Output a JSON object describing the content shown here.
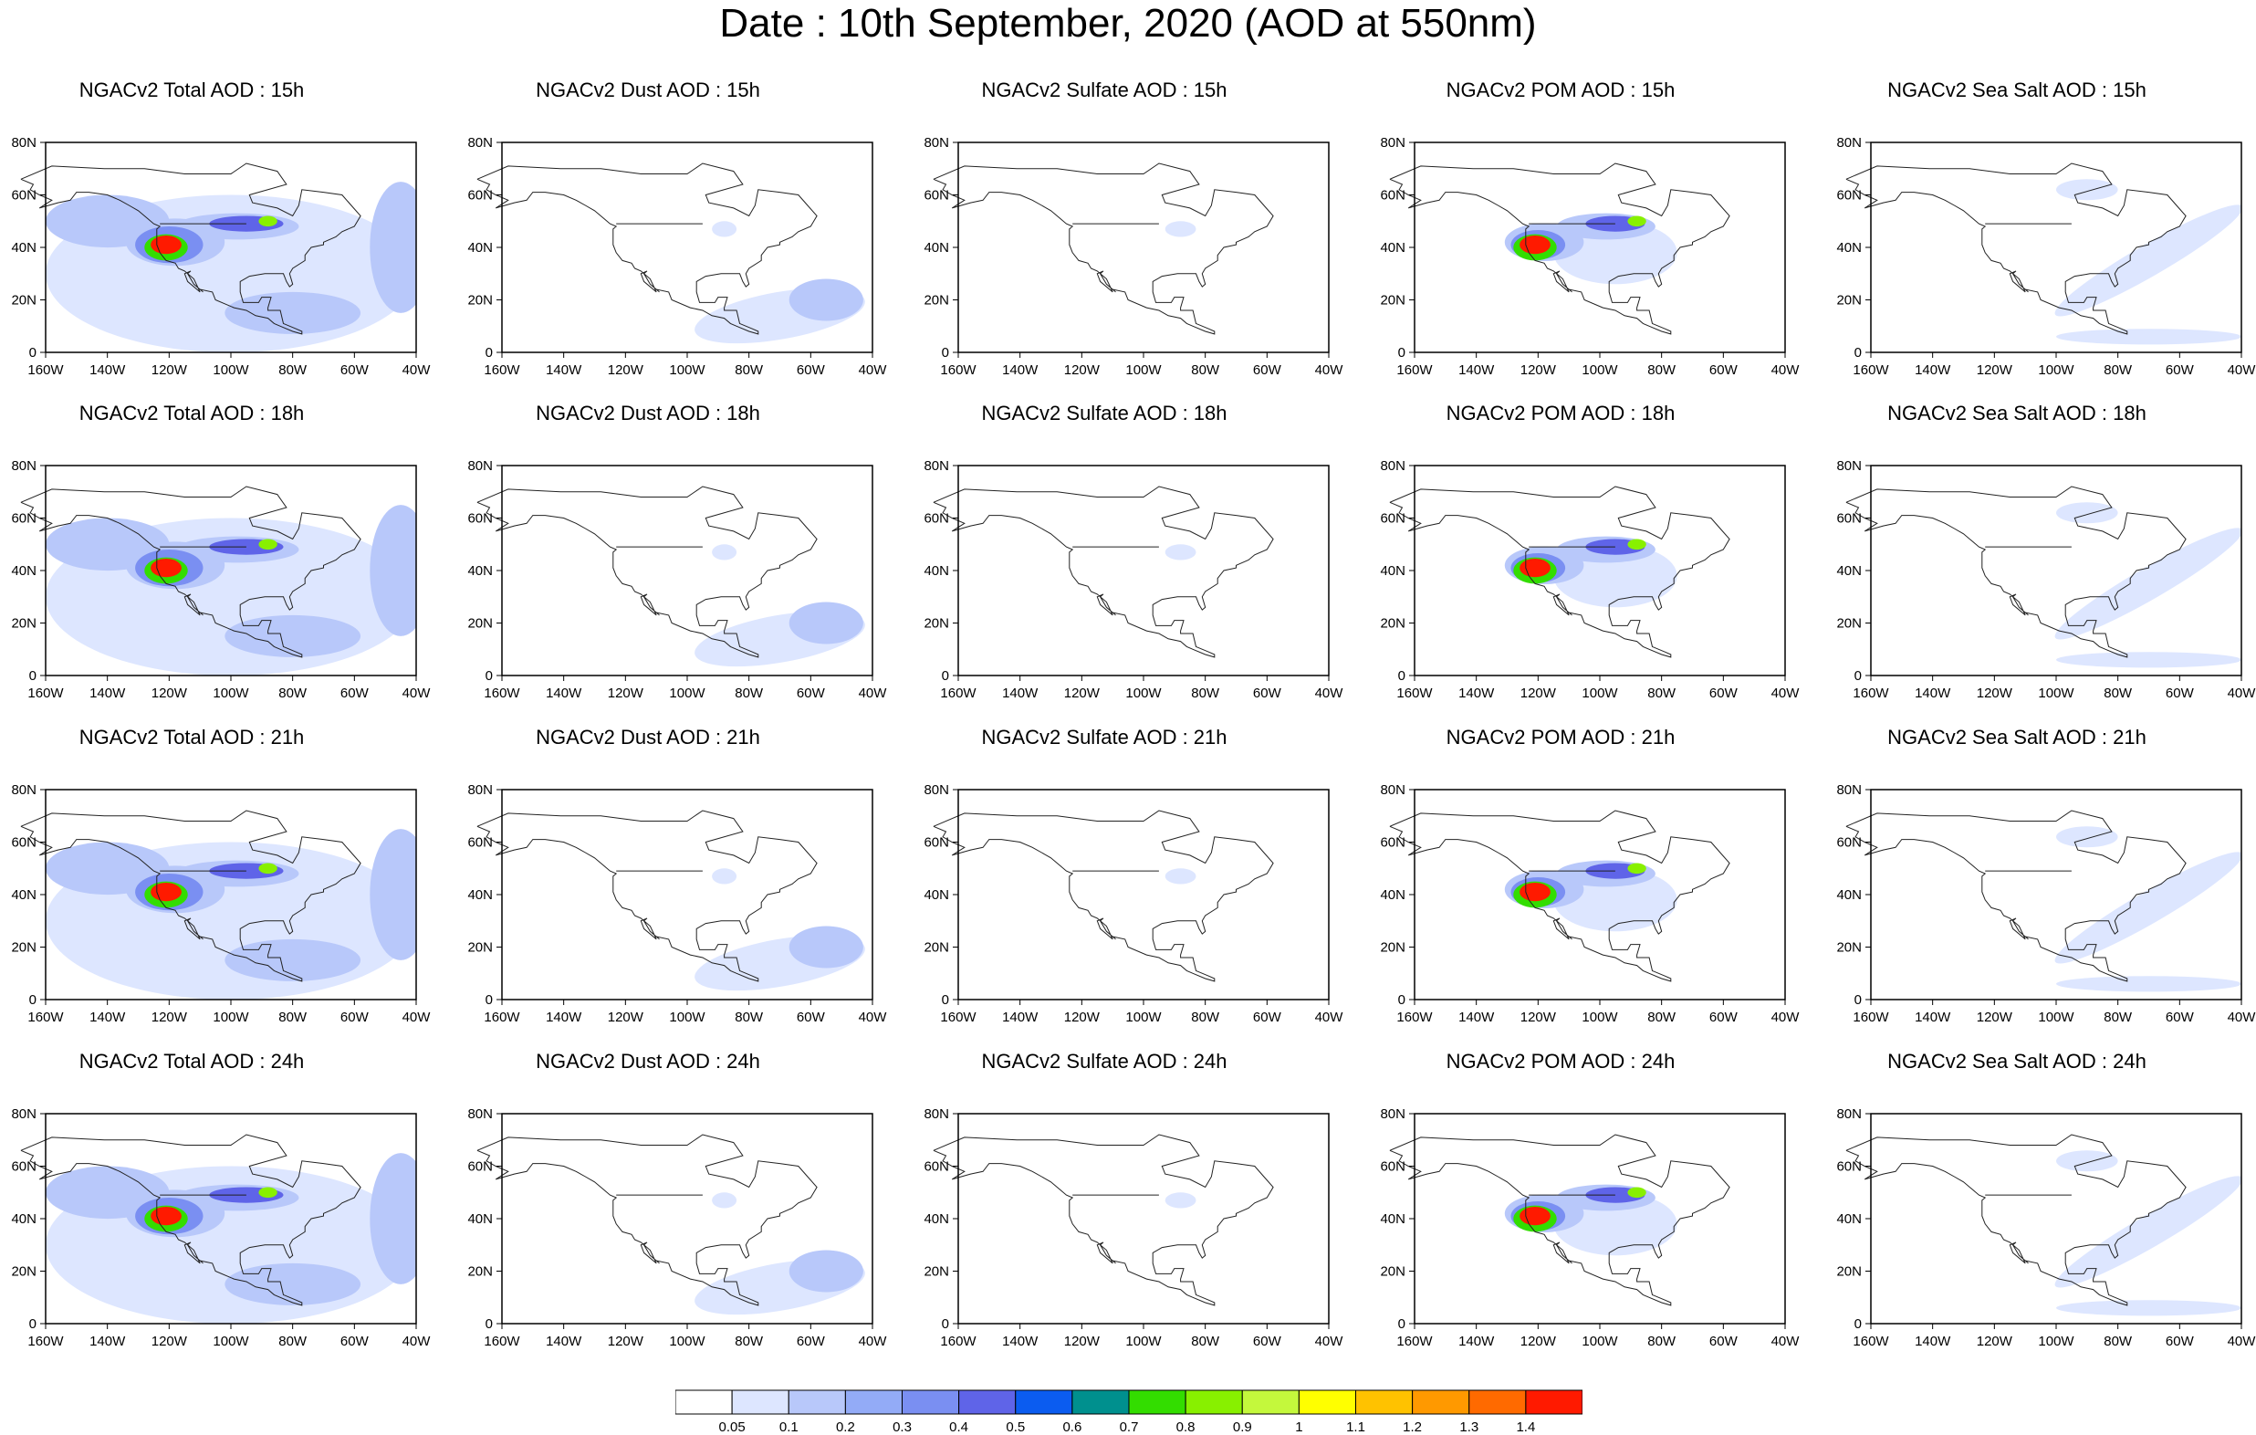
{
  "title": "Date : 10th September, 2020 (AOD at 550nm)",
  "panel_rows": [
    [
      "NGACv2 Total AOD : 15h",
      "NGACv2 Dust AOD : 15h",
      "NGACv2 Sulfate AOD : 15h",
      "NGACv2 POM AOD : 15h",
      "NGACv2 Sea Salt AOD : 15h"
    ],
    [
      "NGACv2 Total AOD : 18h",
      "NGACv2 Dust AOD : 18h",
      "NGACv2 Sulfate AOD : 18h",
      "NGACv2 POM AOD : 18h",
      "NGACv2 Sea Salt AOD : 18h"
    ],
    [
      "NGACv2 Total AOD : 21h",
      "NGACv2 Dust AOD : 21h",
      "NGACv2 Sulfate AOD : 21h",
      "NGACv2 POM AOD : 21h",
      "NGACv2 Sea Salt AOD : 21h"
    ],
    [
      "NGACv2 Total AOD : 24h",
      "NGACv2 Dust AOD : 24h",
      "NGACv2 Sulfate AOD : 24h",
      "NGACv2 POM AOD : 24h",
      "NGACv2 Sea Salt  AOD : 24h"
    ]
  ],
  "panel_kinds": [
    "total",
    "dust",
    "sulfate",
    "pom",
    "seasalt"
  ],
  "lon_ticks": [
    "160W",
    "140W",
    "120W",
    "100W",
    "80W",
    "60W",
    "40W"
  ],
  "lat_ticks": [
    "0",
    "20N",
    "40N",
    "60N",
    "80N"
  ],
  "colorbar": {
    "labels": [
      "0.05",
      "0.1",
      "0.2",
      "0.3",
      "0.4",
      "0.5",
      "0.6",
      "0.7",
      "0.8",
      "0.9",
      "1",
      "1.1",
      "1.2",
      "1.3",
      "1.4"
    ],
    "colors": [
      "#ffffff",
      "#dde6ff",
      "#b8c8fa",
      "#93abf7",
      "#7a8ff2",
      "#5f64e8",
      "#0b5cf0",
      "#00908e",
      "#33dd00",
      "#88f000",
      "#c4f83c",
      "#ffff00",
      "#ffc200",
      "#ff9900",
      "#ff6a00",
      "#ff1a00"
    ]
  }
}
